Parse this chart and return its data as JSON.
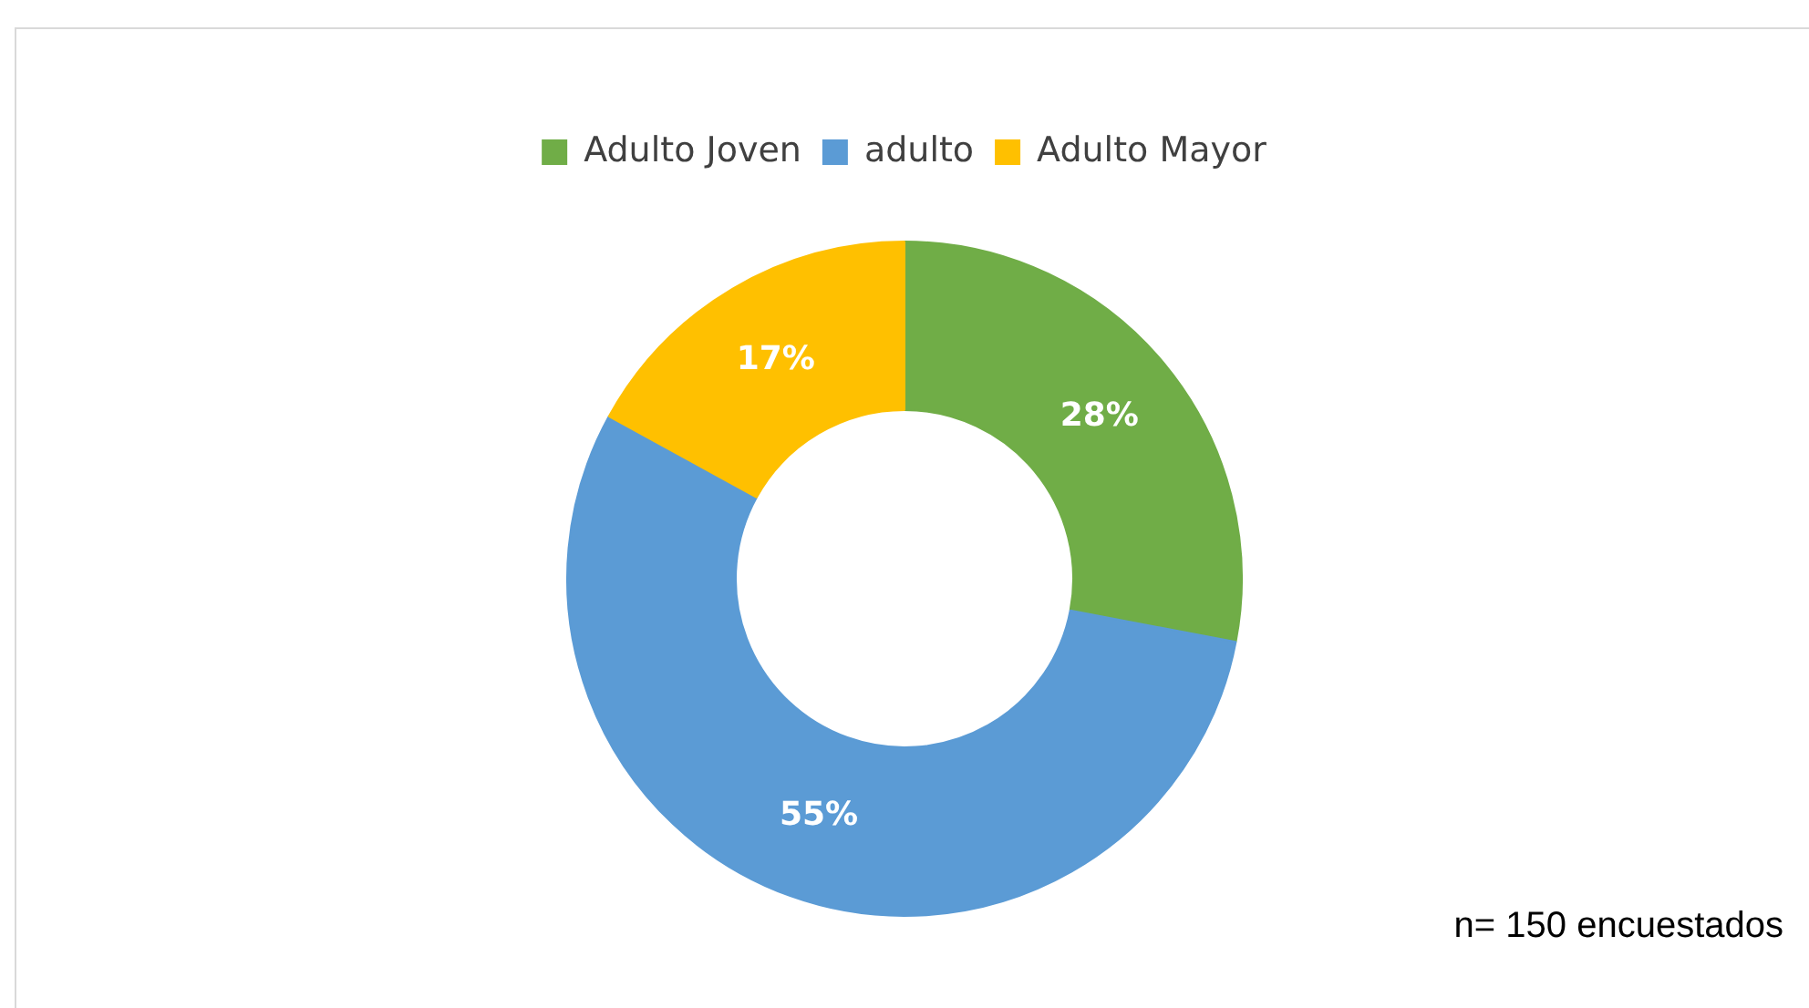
{
  "chart_data": {
    "type": "donut",
    "categories": [
      "Adulto Joven",
      "adulto",
      "Adulto Mayor"
    ],
    "values": [
      28,
      55,
      17
    ],
    "colors": [
      "#70ad47",
      "#5b9bd5",
      "#ffc000"
    ],
    "value_labels": [
      "28%",
      "55%",
      "17%"
    ],
    "legend": "top",
    "annotations": [
      "n= 150 encuestados"
    ]
  }
}
